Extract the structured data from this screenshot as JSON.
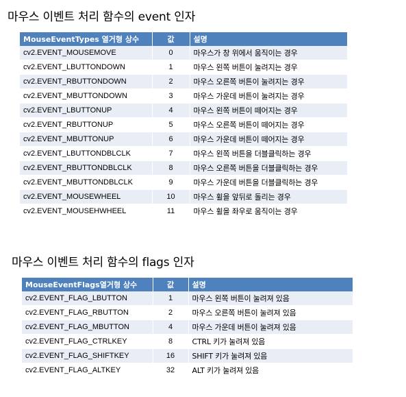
{
  "event_section": {
    "title": "마우스 이벤트 처리 함수의 event 인자",
    "headers": {
      "name": "MouseEventTypes 열거형 상수",
      "value": "값",
      "desc": "설명"
    },
    "rows": [
      {
        "name": "cv2.EVENT_MOUSEMOVE",
        "value": "0",
        "desc": "마우스가 창 위에서 움직이는 경우"
      },
      {
        "name": "cv2.EVENT_LBUTTONDOWN",
        "value": "1",
        "desc": "마우스 왼쪽 버튼이 눌려지는 경우"
      },
      {
        "name": "cv2.EVENT_RBUTTONDOWN",
        "value": "2",
        "desc": "마우스 오른쪽 버튼이 눌려지는 경우"
      },
      {
        "name": "cv2.EVENT_MBUTTONDOWN",
        "value": "3",
        "desc": "마우스 가운데 버튼이 눌려지는 경우"
      },
      {
        "name": "cv2.EVENT_LBUTTONUP",
        "value": "4",
        "desc": "마우스 왼쪽 버튼이 떼어지는 경우"
      },
      {
        "name": "cv2.EVENT_RBUTTONUP",
        "value": "5",
        "desc": "마우스 오른쪽 버튼이 떼어지는 경우"
      },
      {
        "name": "cv2.EVENT_MBUTTONUP",
        "value": "6",
        "desc": "마우스 가운데 버튼이 떼어지는 경우"
      },
      {
        "name": "cv2.EVENT_LBUTTONDBLCLK",
        "value": "7",
        "desc": "마우스 왼쪽 버튼을 더블클릭하는 경우"
      },
      {
        "name": "cv2.EVENT_RBUTTONDBLCLK",
        "value": "8",
        "desc": "마우스 오른쪽 버튼을 더블클릭하는 경우"
      },
      {
        "name": "cv2.EVENT_MBUTTONDBLCLK",
        "value": "9",
        "desc": "마우스 가운데 버튼을 더블클릭하는 경우"
      },
      {
        "name": "cv2.EVENT_MOUSEWHEEL",
        "value": "10",
        "desc": "마우스 휠을 앞뒤로 돌리는 경우"
      },
      {
        "name": "cv2.EVENT_MOUSEHWHEEL",
        "value": "11",
        "desc": "마우스 휠을 좌우로 움직이는 경우"
      }
    ]
  },
  "flags_section": {
    "title": "마우스 이벤트 처리 함수의 flags 인자",
    "headers": {
      "name": "MouseEventFlags열거형 상수",
      "value": "값",
      "desc": "설명"
    },
    "rows": [
      {
        "name": "cv2.EVENT_FLAG_LBUTTON",
        "value": "1",
        "desc": "마우스 왼쪽 버튼이 눌려져 있음"
      },
      {
        "name": "cv2.EVENT_FLAG_RBUTTON",
        "value": "2",
        "desc": "마우스 오른쪽 버튼이 눌려져 있음"
      },
      {
        "name": "cv2.EVENT_FLAG_MBUTTON",
        "value": "4",
        "desc": "마우스 가운데 버튼이 눌려져 있음"
      },
      {
        "name": "cv2.EVENT_FLAG_CTRLKEY",
        "value": "8",
        "desc": "CTRL 키가 눌려져 있음"
      },
      {
        "name": "cv2.EVENT_FLAG_SHIFTKEY",
        "value": "16",
        "desc": "SHIFT 키가 눌려져 있음"
      },
      {
        "name": "cv2.EVENT_FLAG_ALTKEY",
        "value": "32",
        "desc": "ALT 키가 눌려져 있음"
      }
    ]
  }
}
